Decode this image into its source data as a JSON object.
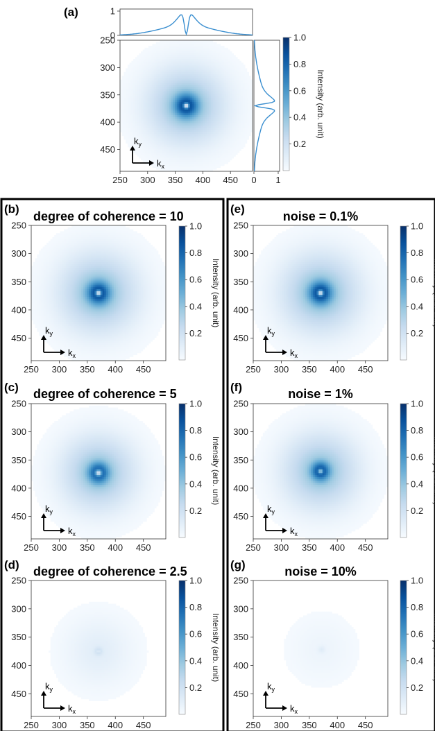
{
  "colors": {
    "colormap": [
      "#f7fbff",
      "#deebf7",
      "#c6dbef",
      "#9ecae1",
      "#6baed6",
      "#4292c6",
      "#2171b5",
      "#08519c",
      "#08306b"
    ],
    "profile_line": "#3b8fd0",
    "panel_border": "#000000"
  },
  "kx_symbol": "k",
  "kx_sub": "x",
  "ky_symbol": "k",
  "ky_sub": "y",
  "chart_data": [
    {
      "id": "a",
      "label": "(a)",
      "type": "heatmap",
      "title": "",
      "x_ticks": [
        "250",
        "300",
        "350",
        "400",
        "450"
      ],
      "y_ticks": [
        "250",
        "300",
        "350",
        "400",
        "450"
      ],
      "xlim": [
        250,
        490
      ],
      "ylim": [
        250,
        490
      ],
      "colorbar": {
        "label": "Intensity (arb. unit)",
        "ticks": [
          "1.0",
          "0.8",
          "0.6",
          "0.4",
          "0.2"
        ],
        "range": [
          0,
          1
        ]
      },
      "beam": {
        "center": [
          370,
          370
        ],
        "spread": 48,
        "core_sigma": 14,
        "hole_sigma": 3.5,
        "hole_depth": 0.95,
        "amplitude": 1.0
      },
      "top_profile": {
        "ticks": [
          "1",
          "0"
        ]
      },
      "side_profile": {
        "ticks": [
          "0",
          "1"
        ]
      }
    },
    {
      "id": "b",
      "label": "(b)",
      "type": "heatmap",
      "title": "degree of coherence = 10",
      "x_ticks": [
        "250",
        "300",
        "350",
        "400",
        "450"
      ],
      "y_ticks": [
        "250",
        "300",
        "350",
        "400",
        "450"
      ],
      "xlim": [
        250,
        490
      ],
      "ylim": [
        250,
        490
      ],
      "colorbar": {
        "label": "Intensity (arb. unit)",
        "ticks": [
          "1.0",
          "0.8",
          "0.6",
          "0.4",
          "0.2"
        ],
        "range": [
          0,
          1
        ]
      },
      "beam": {
        "center": [
          370,
          370
        ],
        "spread": 48,
        "core_sigma": 13,
        "hole_sigma": 3.5,
        "hole_depth": 0.9,
        "amplitude": 1.0
      }
    },
    {
      "id": "c",
      "label": "(c)",
      "type": "heatmap",
      "title": "degree of coherence = 5",
      "x_ticks": [
        "250",
        "300",
        "350",
        "400",
        "450"
      ],
      "y_ticks": [
        "250",
        "300",
        "350",
        "400",
        "450"
      ],
      "xlim": [
        250,
        490
      ],
      "ylim": [
        250,
        490
      ],
      "colorbar": {
        "label": "Intensity (arb. unit)",
        "ticks": [
          "1.0",
          "0.8",
          "0.6",
          "0.4",
          "0.2"
        ],
        "range": [
          0,
          1
        ]
      },
      "beam": {
        "center": [
          370,
          373
        ],
        "spread": 45,
        "core_sigma": 12,
        "hole_sigma": 4,
        "hole_depth": 0.85,
        "amplitude": 0.95
      }
    },
    {
      "id": "d",
      "label": "(d)",
      "type": "heatmap",
      "title": "degree of coherence = 2.5",
      "x_ticks": [
        "250",
        "300",
        "350",
        "400",
        "450"
      ],
      "y_ticks": [
        "250",
        "300",
        "350",
        "400",
        "450"
      ],
      "xlim": [
        250,
        490
      ],
      "ylim": [
        250,
        490
      ],
      "colorbar": {
        "label": "Intensity (arb. unit)",
        "ticks": [
          "1.0",
          "0.8",
          "0.6",
          "0.4",
          "0.2"
        ],
        "range": [
          0,
          1
        ]
      },
      "beam": {
        "center": [
          370,
          375
        ],
        "spread": 42,
        "core_sigma": 4.5,
        "hole_sigma": 2,
        "hole_depth": 0.6,
        "amplitude": 0.25
      }
    },
    {
      "id": "e",
      "label": "(e)",
      "type": "heatmap",
      "title": "noise = 0.1%",
      "x_ticks": [
        "250",
        "300",
        "350",
        "400",
        "450"
      ],
      "y_ticks": [
        "250",
        "300",
        "350",
        "400",
        "450"
      ],
      "xlim": [
        250,
        490
      ],
      "ylim": [
        250,
        490
      ],
      "colorbar": {
        "label": "Intensity (arb. unit)",
        "ticks": [
          "1.0",
          "0.8",
          "0.6",
          "0.4",
          "0.2"
        ],
        "range": [
          0,
          1
        ]
      },
      "beam": {
        "center": [
          370,
          370
        ],
        "spread": 48,
        "core_sigma": 13,
        "hole_sigma": 3.5,
        "hole_depth": 0.9,
        "amplitude": 1.0
      }
    },
    {
      "id": "f",
      "label": "(f)",
      "type": "heatmap",
      "title": "noise = 1%",
      "x_ticks": [
        "250",
        "300",
        "350",
        "400",
        "450"
      ],
      "y_ticks": [
        "250",
        "300",
        "350",
        "400",
        "450"
      ],
      "xlim": [
        250,
        490
      ],
      "ylim": [
        250,
        490
      ],
      "colorbar": {
        "label": "Intensity (arb. unit)",
        "ticks": [
          "1.0",
          "0.8",
          "0.6",
          "0.4",
          "0.2"
        ],
        "range": [
          0,
          1
        ]
      },
      "beam": {
        "center": [
          370,
          370
        ],
        "spread": 46,
        "core_sigma": 11,
        "hole_sigma": 3,
        "hole_depth": 0.7,
        "amplitude": 0.95
      }
    },
    {
      "id": "g",
      "label": "(g)",
      "type": "heatmap",
      "title": "noise = 10%",
      "x_ticks": [
        "250",
        "300",
        "350",
        "400",
        "450"
      ],
      "y_ticks": [
        "250",
        "300",
        "350",
        "400",
        "450"
      ],
      "xlim": [
        250,
        490
      ],
      "ylim": [
        250,
        490
      ],
      "colorbar": {
        "label": "Intensity (arb. unit)",
        "ticks": [
          "1.0",
          "0.8",
          "0.6",
          "0.4",
          "0.2"
        ],
        "range": [
          0,
          1
        ]
      },
      "beam": {
        "center": [
          372,
          372
        ],
        "spread": 40,
        "core_sigma": 4,
        "hole_sigma": 1,
        "hole_depth": 0.0,
        "amplitude": 0.12
      }
    }
  ]
}
